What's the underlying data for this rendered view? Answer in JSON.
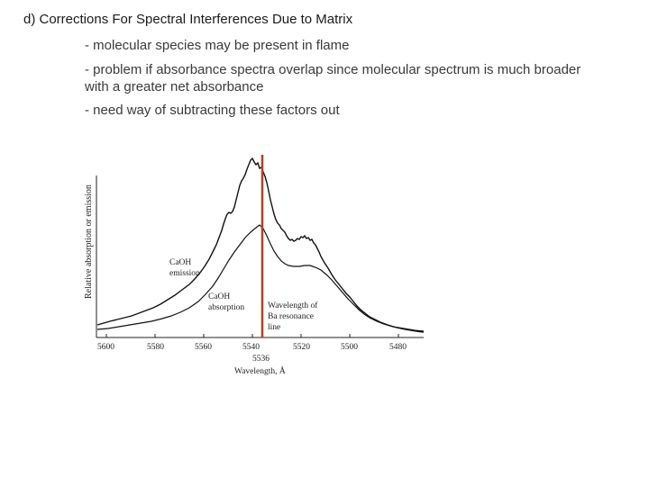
{
  "slide": {
    "heading": "d) Corrections For Spectral Interferences Due to Matrix",
    "bullets": [
      "- molecular species may be present in flame",
      "- problem if absorbance spectra overlap since molecular spectrum is much broader with a greater net absorbance",
      "- need way of subtracting these factors out"
    ]
  },
  "figure": {
    "y_axis_label": "Relative absorption or emission",
    "x_axis_label": "Wavelength, Å",
    "x_ticks": [
      "5600",
      "5580",
      "5560",
      "5540",
      "5520",
      "5500",
      "5480"
    ],
    "marker_tick": "5536",
    "label_emission_line1": "CaOH",
    "label_emission_line2": "emission",
    "label_absorption_line1": "CaOH",
    "label_absorption_line2": "absorption",
    "label_wavelength_line1": "Wavelength of",
    "label_wavelength_line2": "Ba resonance",
    "label_wavelength_line3": "line",
    "resonance_line_color": "#b5401c",
    "curve_color": "#111111"
  }
}
